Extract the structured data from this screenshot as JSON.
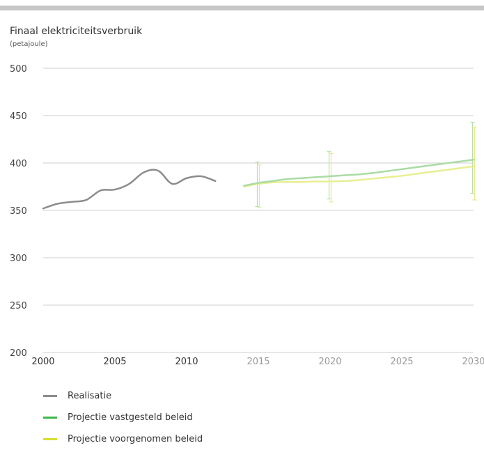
{
  "chart_data": {
    "type": "line",
    "title": "Finaal elektriciteitsverbruik",
    "subtitle": "(petajoule)",
    "ylim": [
      200,
      500
    ],
    "yticks": [
      200,
      250,
      300,
      350,
      400,
      450,
      500
    ],
    "xlim": [
      2000,
      2030
    ],
    "xticks": [
      2000,
      2005,
      2010,
      2015,
      2020,
      2025,
      2030
    ],
    "grid": true,
    "legend_position": "bottom-left",
    "series": [
      {
        "name": "Realisatie",
        "color": "#8c8c8c",
        "x": [
          2000,
          2001,
          2002,
          2003,
          2004,
          2005,
          2006,
          2007,
          2008,
          2009,
          2010,
          2011,
          2012
        ],
        "y": [
          352,
          357,
          359,
          361,
          371,
          372,
          378,
          390,
          392,
          378,
          384,
          386,
          381
        ]
      },
      {
        "name": "Projectie vastgesteld beleid",
        "color": "#a9dca4",
        "x": [
          2014,
          2015,
          2016,
          2017,
          2018,
          2019,
          2020,
          2021,
          2022,
          2023,
          2024,
          2025,
          2026,
          2027,
          2028,
          2029,
          2030
        ],
        "y": [
          376,
          379,
          381,
          383,
          384,
          385,
          386,
          387,
          388,
          389.5,
          391.5,
          393.5,
          395.5,
          397.5,
          399.5,
          401.5,
          403.5
        ]
      },
      {
        "name": "Projectie voorgenomen beleid",
        "color": "#e7ef92",
        "x": [
          2014,
          2015,
          2016,
          2017,
          2018,
          2019,
          2020,
          2021,
          2022,
          2023,
          2024,
          2025,
          2026,
          2027,
          2028,
          2029,
          2030
        ],
        "y": [
          375,
          378,
          379.5,
          380,
          380,
          380.5,
          380.5,
          381,
          382,
          383.5,
          385,
          386.5,
          388.5,
          390.5,
          392.5,
          394.5,
          396.5
        ]
      }
    ],
    "error_bars": [
      {
        "series": "Projectie vastgesteld beleid",
        "x": 2015,
        "low": 354,
        "high": 401,
        "color": "#b5e0ad"
      },
      {
        "series": "Projectie voorgenomen beleid",
        "x": 2015,
        "low": 353,
        "high": 398,
        "color": "#e4ec8c"
      },
      {
        "series": "Projectie vastgesteld beleid",
        "x": 2020,
        "low": 362,
        "high": 412,
        "color": "#b5e0ad"
      },
      {
        "series": "Projectie voorgenomen beleid",
        "x": 2020,
        "low": 359,
        "high": 410,
        "color": "#e4ec8c"
      },
      {
        "series": "Projectie vastgesteld beleid",
        "x": 2030,
        "low": 368,
        "high": 443,
        "color": "#b5e0ad"
      },
      {
        "series": "Projectie voorgenomen beleid",
        "x": 2030,
        "low": 361,
        "high": 438,
        "color": "#e4ec8c"
      }
    ],
    "xtick_colors": {
      "realized": "#333333",
      "projected": "#9a9a9a"
    }
  },
  "legend": [
    {
      "label": "Realisatie",
      "color": "#8c8c8c"
    },
    {
      "label": "Projectie vastgesteld beleid",
      "color": "#3db84a"
    },
    {
      "label": "Projectie voorgenomen beleid",
      "color": "#d6e12c"
    }
  ]
}
